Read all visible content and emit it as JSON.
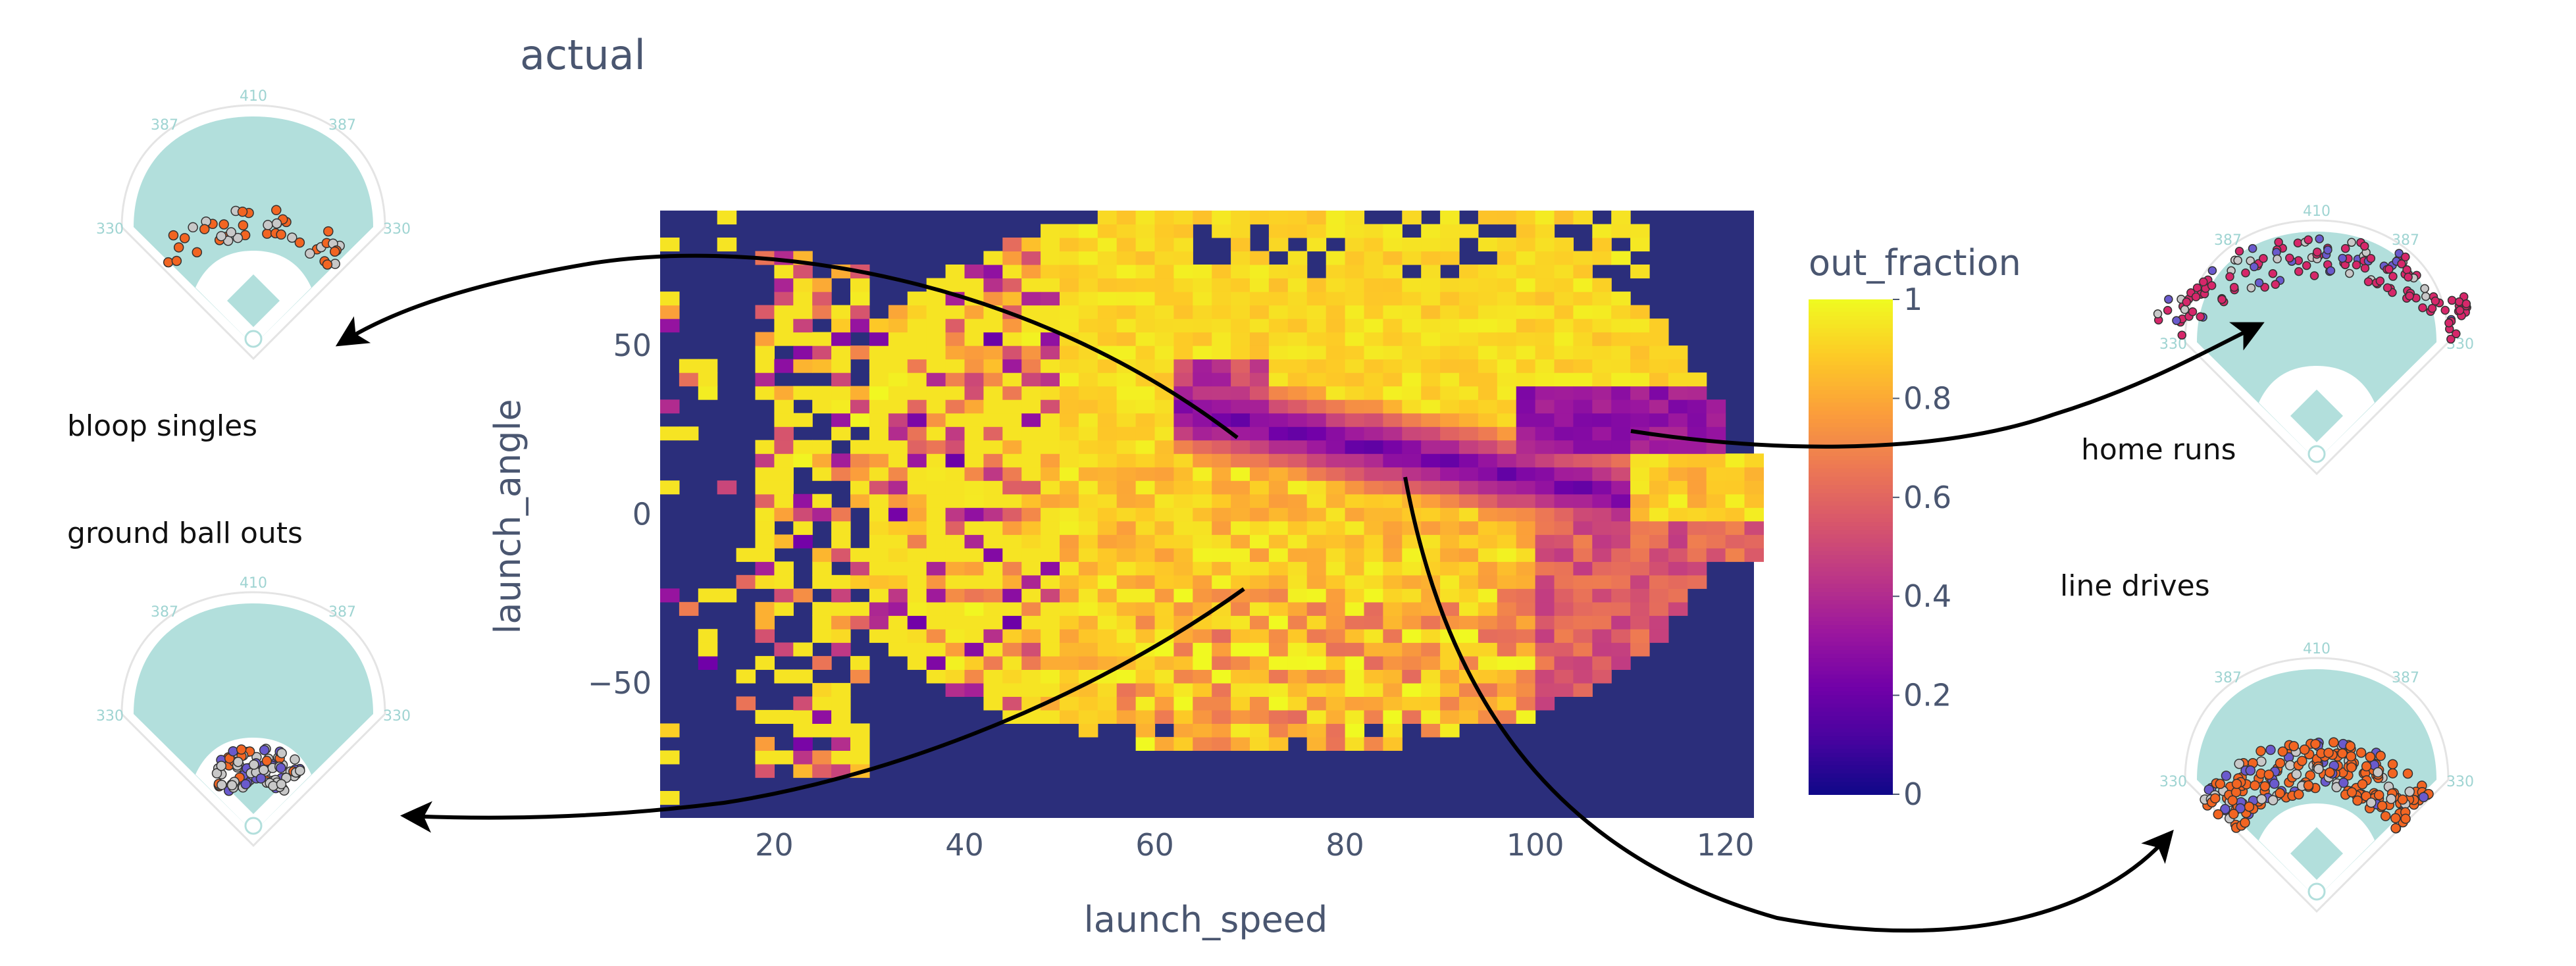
{
  "chart_data": {
    "type": "heatmap",
    "title": "actual",
    "xlabel": "launch_speed",
    "ylabel": "launch_angle",
    "xlim": [
      8,
      123
    ],
    "ylim": [
      -90,
      90
    ],
    "x_ticks": [
      20,
      40,
      60,
      80,
      100,
      120
    ],
    "y_ticks": [
      50,
      0,
      -50
    ],
    "y_tick_labels": [
      "50",
      "0",
      "−50"
    ],
    "colorbar": {
      "title": "out_fraction",
      "range": [
        0,
        1
      ],
      "ticks": [
        1,
        0.8,
        0.6,
        0.4,
        0.2,
        0
      ],
      "tick_labels": [
        "1",
        "0.8",
        "0.6",
        "0.4",
        "0.2",
        "0"
      ],
      "colorscale": "plasma",
      "colors": [
        "#0d0887",
        "#46039f",
        "#7201a8",
        "#9c179e",
        "#bd3786",
        "#d8576b",
        "#ed7953",
        "#fb9f3a",
        "#fdca26",
        "#f0f921"
      ]
    },
    "background_color": "#2b2e7b",
    "bin_size_speed": 2,
    "bin_size_angle": 4
  },
  "annotations": {
    "bloop_singles": "bloop singles",
    "ground_ball_outs": "ground ball outs",
    "home_runs": "home runs",
    "line_drives": "line drives"
  },
  "field_distances": {
    "center": "410",
    "alley": "387",
    "line": "330"
  },
  "colors": {
    "field_fill": "#b2dfdc",
    "field_label": "#9fd4d2",
    "single": "#f26522",
    "out": "#c8c8c8",
    "double": "#6a5acd",
    "home_run": "#d6276a",
    "arrow": "#000000"
  }
}
